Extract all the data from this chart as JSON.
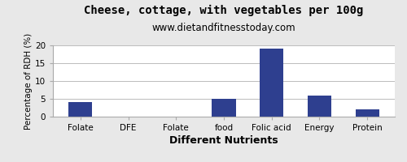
{
  "title": "Cheese, cottage, with vegetables per 100g",
  "subtitle": "www.dietandfitnesstoday.com",
  "xlabel": "Different Nutrients",
  "ylabel": "Percentage of RDH (%)",
  "categories": [
    "Folate",
    "DFE",
    "Folate",
    "food",
    "Folic acid",
    "Energy",
    "Protein"
  ],
  "values": [
    4.0,
    0.0,
    0.0,
    5.0,
    19.0,
    6.0,
    2.0
  ],
  "bar_color": "#2e3f8f",
  "ylim": [
    0,
    20
  ],
  "yticks": [
    0,
    5,
    10,
    15,
    20
  ],
  "title_fontsize": 10,
  "subtitle_fontsize": 8.5,
  "xlabel_fontsize": 9,
  "ylabel_fontsize": 7.5,
  "tick_fontsize": 7.5,
  "background_color": "#e8e8e8",
  "plot_bg_color": "#ffffff",
  "border_color": "#aaaaaa"
}
